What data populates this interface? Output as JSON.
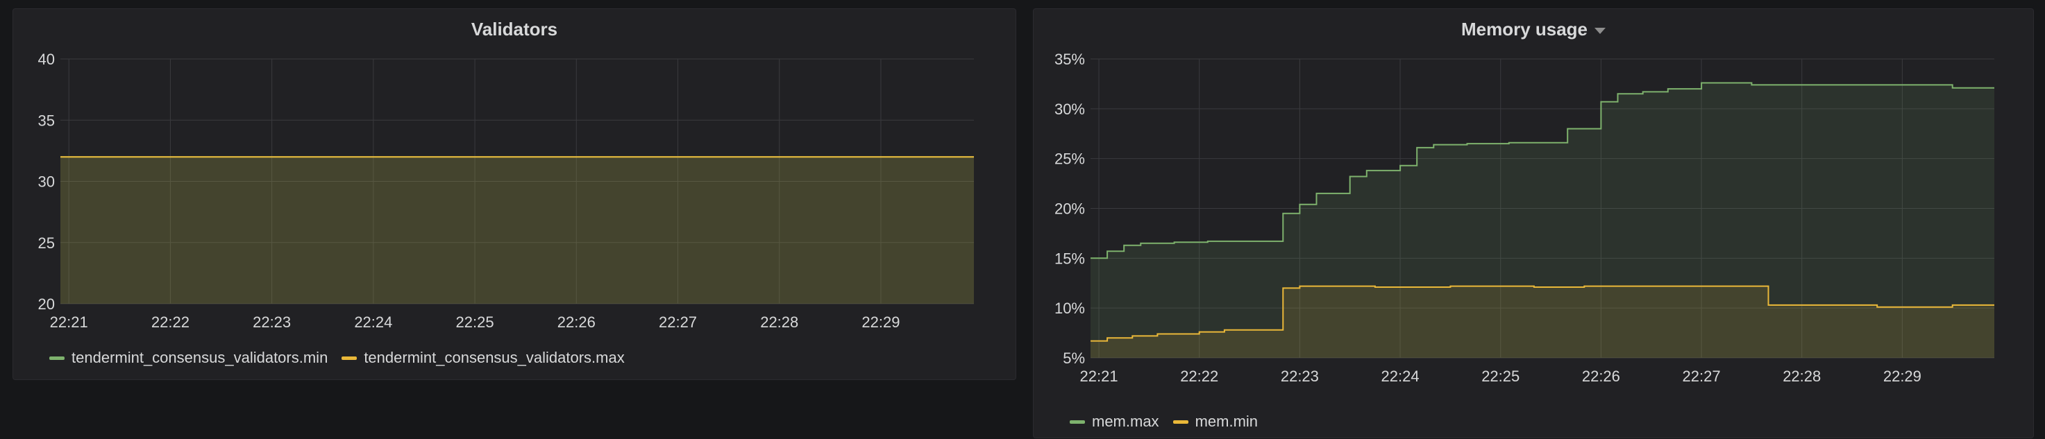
{
  "panels": [
    {
      "title": "Validators",
      "legend": [
        {
          "label": "tendermint_consensus_validators.min",
          "color": "#7eb26d"
        },
        {
          "label": "tendermint_consensus_validators.max",
          "color": "#eab839"
        }
      ]
    },
    {
      "title": "Memory usage",
      "legend": [
        {
          "label": "mem.max",
          "color": "#7eb26d"
        },
        {
          "label": "mem.min",
          "color": "#eab839"
        }
      ]
    }
  ],
  "chart_data": [
    {
      "type": "area",
      "title": "Validators",
      "x": [
        "22:21",
        "22:22",
        "22:23",
        "22:24",
        "22:25",
        "22:26",
        "22:27",
        "22:28",
        "22:29"
      ],
      "xlim": [
        "22:20:55",
        "22:29:55"
      ],
      "ylim": [
        20,
        40
      ],
      "yticks": [
        20,
        25,
        30,
        35,
        40
      ],
      "grid": true,
      "legend_position": "bottom-left",
      "series": [
        {
          "name": "tendermint_consensus_validators.min",
          "color": "#7eb26d",
          "values": [
            32,
            32,
            32,
            32,
            32,
            32,
            32,
            32,
            32
          ]
        },
        {
          "name": "tendermint_consensus_validators.max",
          "color": "#eab839",
          "values": [
            32,
            32,
            32,
            32,
            32,
            32,
            32,
            32,
            32
          ]
        }
      ]
    },
    {
      "type": "area",
      "title": "Memory usage",
      "x": [
        "22:21",
        "22:22",
        "22:23",
        "22:24",
        "22:25",
        "22:26",
        "22:27",
        "22:28",
        "22:29"
      ],
      "xlim": [
        "22:20:55",
        "22:29:55"
      ],
      "ylim": [
        5,
        35
      ],
      "yticks": [
        5,
        10,
        15,
        20,
        25,
        30,
        35
      ],
      "yunit": "%",
      "grid": true,
      "legend_position": "bottom-left",
      "series": [
        {
          "name": "mem.max",
          "color": "#7eb26d",
          "points": [
            [
              "22:20:55",
              15.0
            ],
            [
              "22:21:05",
              15.0
            ],
            [
              "22:21:05",
              15.7
            ],
            [
              "22:21:15",
              15.7
            ],
            [
              "22:21:15",
              16.3
            ],
            [
              "22:21:25",
              16.3
            ],
            [
              "22:21:25",
              16.5
            ],
            [
              "22:21:45",
              16.5
            ],
            [
              "22:21:45",
              16.6
            ],
            [
              "22:22:05",
              16.6
            ],
            [
              "22:22:05",
              16.7
            ],
            [
              "22:22:50",
              16.7
            ],
            [
              "22:22:50",
              19.5
            ],
            [
              "22:23:00",
              19.5
            ],
            [
              "22:23:00",
              20.4
            ],
            [
              "22:23:10",
              20.4
            ],
            [
              "22:23:10",
              21.5
            ],
            [
              "22:23:30",
              21.5
            ],
            [
              "22:23:30",
              23.2
            ],
            [
              "22:23:40",
              23.2
            ],
            [
              "22:23:40",
              23.8
            ],
            [
              "22:24:00",
              23.8
            ],
            [
              "22:24:00",
              24.3
            ],
            [
              "22:24:10",
              24.3
            ],
            [
              "22:24:10",
              26.1
            ],
            [
              "22:24:20",
              26.1
            ],
            [
              "22:24:20",
              26.4
            ],
            [
              "22:24:40",
              26.4
            ],
            [
              "22:24:40",
              26.5
            ],
            [
              "22:25:05",
              26.5
            ],
            [
              "22:25:05",
              26.6
            ],
            [
              "22:25:40",
              26.6
            ],
            [
              "22:25:40",
              28.0
            ],
            [
              "22:26:00",
              28.0
            ],
            [
              "22:26:00",
              30.7
            ],
            [
              "22:26:10",
              30.7
            ],
            [
              "22:26:10",
              31.5
            ],
            [
              "22:26:25",
              31.5
            ],
            [
              "22:26:25",
              31.7
            ],
            [
              "22:26:40",
              31.7
            ],
            [
              "22:26:40",
              32.0
            ],
            [
              "22:27:00",
              32.0
            ],
            [
              "22:27:00",
              32.6
            ],
            [
              "22:27:30",
              32.6
            ],
            [
              "22:27:30",
              32.4
            ],
            [
              "22:29:30",
              32.4
            ],
            [
              "22:29:30",
              32.1
            ],
            [
              "22:29:55",
              32.1
            ]
          ]
        },
        {
          "name": "mem.min",
          "color": "#eab839",
          "points": [
            [
              "22:20:55",
              6.7
            ],
            [
              "22:21:05",
              6.7
            ],
            [
              "22:21:05",
              7.0
            ],
            [
              "22:21:20",
              7.0
            ],
            [
              "22:21:20",
              7.2
            ],
            [
              "22:21:35",
              7.2
            ],
            [
              "22:21:35",
              7.4
            ],
            [
              "22:22:00",
              7.4
            ],
            [
              "22:22:00",
              7.6
            ],
            [
              "22:22:15",
              7.6
            ],
            [
              "22:22:15",
              7.8
            ],
            [
              "22:22:50",
              7.8
            ],
            [
              "22:22:50",
              12.0
            ],
            [
              "22:23:00",
              12.0
            ],
            [
              "22:23:00",
              12.2
            ],
            [
              "22:23:45",
              12.2
            ],
            [
              "22:23:45",
              12.1
            ],
            [
              "22:24:30",
              12.1
            ],
            [
              "22:24:30",
              12.2
            ],
            [
              "22:25:20",
              12.2
            ],
            [
              "22:25:20",
              12.1
            ],
            [
              "22:25:50",
              12.1
            ],
            [
              "22:25:50",
              12.2
            ],
            [
              "22:27:40",
              12.2
            ],
            [
              "22:27:40",
              10.3
            ],
            [
              "22:28:45",
              10.3
            ],
            [
              "22:28:45",
              10.1
            ],
            [
              "22:29:30",
              10.1
            ],
            [
              "22:29:30",
              10.3
            ],
            [
              "22:29:55",
              10.3
            ]
          ]
        }
      ]
    }
  ]
}
